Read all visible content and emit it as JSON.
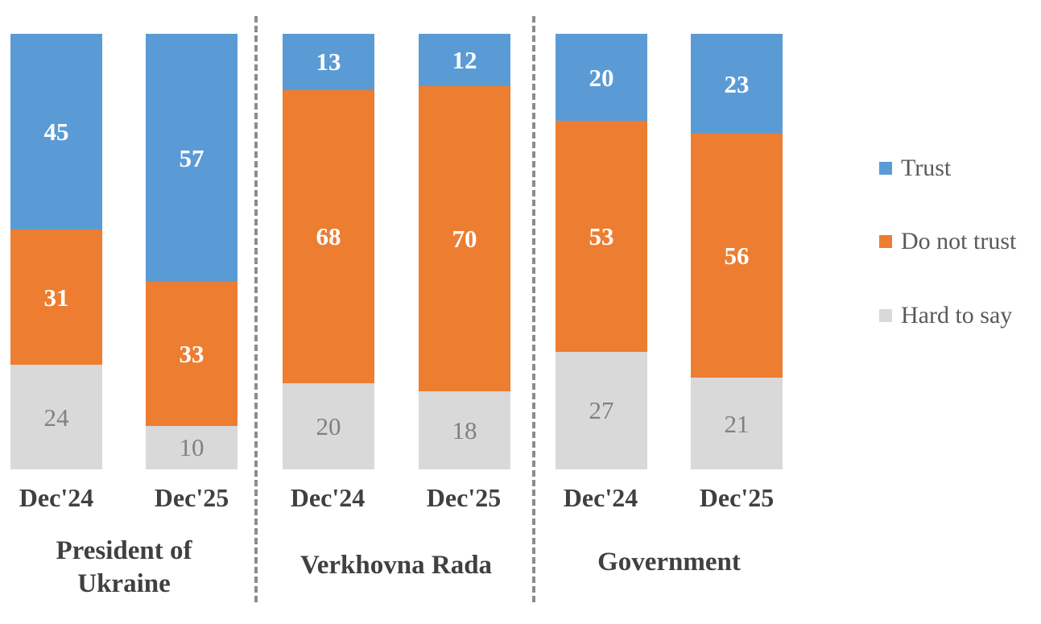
{
  "chart_data": {
    "type": "bar",
    "subtype": "100-percent-stacked-column",
    "orientation": "vertical",
    "grid": false,
    "axes_visible": false,
    "ylim": [
      0,
      100
    ],
    "legend_position": "right",
    "legend": [
      "Trust",
      "Do not trust",
      "Hard to say"
    ],
    "series_order": [
      "Trust",
      "Do not trust",
      "Hard to say"
    ],
    "series_colors": {
      "Trust": "#5B9BD5",
      "Do not trust": "#ED7D31",
      "Hard to say": "#D9D9D9"
    },
    "label_text_colors": {
      "Trust": "#FFFFFF",
      "Do not trust": "#FFFFFF",
      "Hard to say": "#808080"
    },
    "divider_style": "dashed",
    "groups": [
      {
        "name": "President of Ukraine",
        "bars": [
          {
            "category": "Dec'24",
            "values": {
              "Trust": 45,
              "Do not trust": 31,
              "Hard to say": 24
            }
          },
          {
            "category": "Dec'25",
            "values": {
              "Trust": 57,
              "Do not trust": 33,
              "Hard to say": 10
            }
          }
        ]
      },
      {
        "name": "Verkhovna Rada",
        "bars": [
          {
            "category": "Dec'24",
            "values": {
              "Trust": 13,
              "Do not trust": 68,
              "Hard to say": 20
            }
          },
          {
            "category": "Dec'25",
            "values": {
              "Trust": 12,
              "Do not trust": 70,
              "Hard to say": 18
            }
          }
        ]
      },
      {
        "name": "Government",
        "bars": [
          {
            "category": "Dec'24",
            "values": {
              "Trust": 20,
              "Do not trust": 53,
              "Hard to say": 27
            }
          },
          {
            "category": "Dec'25",
            "values": {
              "Trust": 23,
              "Do not trust": 56,
              "Hard to say": 21
            }
          }
        ]
      }
    ]
  }
}
